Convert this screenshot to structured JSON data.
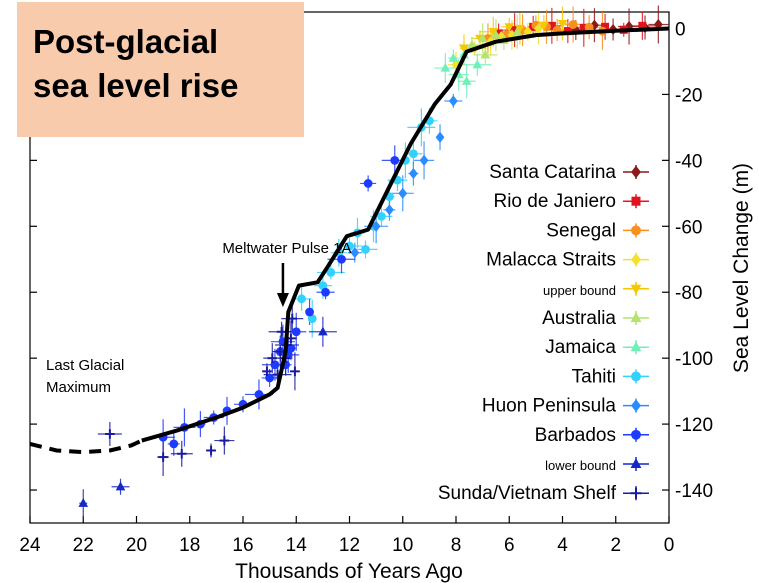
{
  "title": "Post-glacial sea level rise",
  "title_lines": [
    "Post-glacial",
    "sea level rise"
  ],
  "chart_data": {
    "type": "scatter",
    "xlabel": "Thousands of Years Ago",
    "ylabel": "Sea Level Change (m)",
    "xlim": [
      24,
      0
    ],
    "ylim": [
      -150,
      5
    ],
    "x_ticks": [
      24,
      22,
      20,
      18,
      16,
      14,
      12,
      10,
      8,
      6,
      4,
      2,
      0
    ],
    "y_ticks": [
      0,
      -20,
      -40,
      -60,
      -80,
      -100,
      -120,
      -140
    ],
    "legend_position": "right",
    "annotations": [
      {
        "text": "Meltwater Pulse 1A",
        "x": 14.5,
        "y": -80
      },
      {
        "text_lines": [
          "Last Glacial",
          "Maximum"
        ],
        "x": 22.5,
        "y": -108
      }
    ],
    "trend_line": {
      "x": [
        19.8,
        18.5,
        17,
        16,
        15,
        14.7,
        14.4,
        14.3,
        13.9,
        13.2,
        12.8,
        12.1,
        11.3,
        10.5,
        9.7,
        8.8,
        8.2,
        7.6,
        6.5,
        5,
        4,
        2,
        0
      ],
      "y": [
        -125,
        -122,
        -118,
        -115,
        -111,
        -109,
        -98,
        -86,
        -78,
        -77,
        -72,
        -63,
        -61,
        -48,
        -35,
        -23,
        -17,
        -7,
        -4,
        -2,
        -1.5,
        -0.7,
        0
      ]
    },
    "lgm_extension": {
      "x": [
        24,
        23,
        22,
        21,
        20.2,
        19.8
      ],
      "y": [
        -126,
        -128,
        -128.5,
        -128,
        -126.5,
        -125
      ]
    },
    "series": [
      {
        "name": "Santa Catarina",
        "marker": "diamond",
        "color": "#8b1a1a",
        "x": [
          3.5,
          2.8,
          2.1,
          1.5,
          0.9,
          0.4
        ],
        "y": [
          -0.5,
          1,
          -0.3,
          0.6,
          0.3,
          1.2
        ]
      },
      {
        "name": "Rio de Janiero",
        "marker": "square",
        "color": "#e0141e",
        "x": [
          6.4,
          5.8,
          5.1,
          4.4,
          3.8,
          3.2,
          2.4,
          1.7,
          1.0
        ],
        "y": [
          -1.5,
          -0.5,
          0.5,
          0.8,
          -0.8,
          0.2,
          0.5,
          -0.4,
          0.8
        ]
      },
      {
        "name": "Senegal",
        "marker": "circle",
        "color": "#f7901e",
        "x": [
          6.8,
          6.1,
          5.5,
          5.0,
          4.6,
          4.2,
          3.6,
          3.0,
          2.5
        ],
        "y": [
          -3,
          -2,
          -0.5,
          1,
          0.5,
          -0.5,
          1.2,
          0.4,
          -0.8
        ]
      },
      {
        "name": "Malacca Straits",
        "marker": "diamond",
        "color": "#f2e22c",
        "x": [
          8.0,
          7.3,
          6.7,
          6.3,
          5.9,
          5.3,
          4.9
        ],
        "y": [
          -11,
          -6,
          -4,
          -2.5,
          -2,
          -1,
          0
        ]
      },
      {
        "name": "upper bound",
        "marker": "triangle-down",
        "color": "#f7c800",
        "x": [
          7.7,
          7.1,
          6.6,
          6.0,
          5.6,
          4.7,
          4.0
        ],
        "y": [
          -6,
          -3,
          -1,
          0.5,
          0,
          1,
          1.5
        ]
      },
      {
        "name": "Australia",
        "marker": "triangle-up",
        "color": "#b3e36b",
        "x": [
          7.4,
          7.0,
          6.9,
          6.5,
          6.2,
          5.7
        ],
        "y": [
          -5,
          -3,
          -8,
          -2,
          -3.5,
          -1
        ]
      },
      {
        "name": "Jamaica",
        "marker": "triangle-up",
        "color": "#6ff0b8",
        "x": [
          8.4,
          8.1,
          7.9,
          7.7,
          7.6,
          7.2
        ],
        "y": [
          -12,
          -9,
          -14,
          -8,
          -16,
          -11
        ]
      },
      {
        "name": "Tahiti",
        "marker": "circle",
        "color": "#33d1ff",
        "x": [
          13.8,
          13.4,
          13.0,
          12.7,
          12.4,
          12.0,
          11.7,
          11.4,
          11.1,
          10.8,
          10.5,
          10.2,
          9.9,
          9.6,
          9.3,
          9.0
        ],
        "y": [
          -82,
          -88,
          -78,
          -74,
          -68,
          -66,
          -62,
          -67,
          -60,
          -57,
          -51,
          -46,
          -40,
          -38,
          -30,
          -28
        ]
      },
      {
        "name": "Huon Peninsula",
        "marker": "diamond",
        "color": "#2b8cff",
        "x": [
          11.8,
          11.0,
          10.5,
          10.0,
          9.6,
          9.2,
          8.6,
          8.1
        ],
        "y": [
          -68,
          -60,
          -55,
          -50,
          -44,
          -40,
          -33,
          -22
        ]
      },
      {
        "name": "Barbados",
        "marker": "circle",
        "color": "#1d3bff",
        "x": [
          19.0,
          18.6,
          18.2,
          17.6,
          17.1,
          16.6,
          16.0,
          15.4,
          15.0,
          14.8,
          14.6,
          14.5,
          14.4,
          14.3,
          14.2,
          14.0,
          13.5,
          12.9,
          12.3,
          11.3,
          10.3
        ],
        "y": [
          -124,
          -126,
          -121,
          -120,
          -118,
          -116,
          -114,
          -111,
          -106,
          -102,
          -98,
          -95,
          -102,
          -99,
          -97,
          -92,
          -86,
          -80,
          -70,
          -47,
          -40
        ]
      },
      {
        "name": "lower bound",
        "marker": "triangle-up",
        "color": "#1428c8",
        "x": [
          22.0,
          20.6,
          13.0
        ],
        "y": [
          -144,
          -139,
          -92
        ]
      },
      {
        "name": "Sunda/Vietnam Shelf",
        "marker": "plus",
        "color": "#1a1aa0",
        "x": [
          21.0,
          19.0,
          18.3,
          17.2,
          16.7,
          15.1,
          14.9,
          14.7,
          14.6,
          14.55,
          14.4,
          14.35,
          14.2,
          14.15,
          14.05
        ],
        "y": [
          -123,
          -130,
          -129,
          -128,
          -125,
          -104,
          -100,
          -105,
          -98,
          -92,
          -100,
          -96,
          -94,
          -88,
          -104
        ]
      }
    ]
  }
}
